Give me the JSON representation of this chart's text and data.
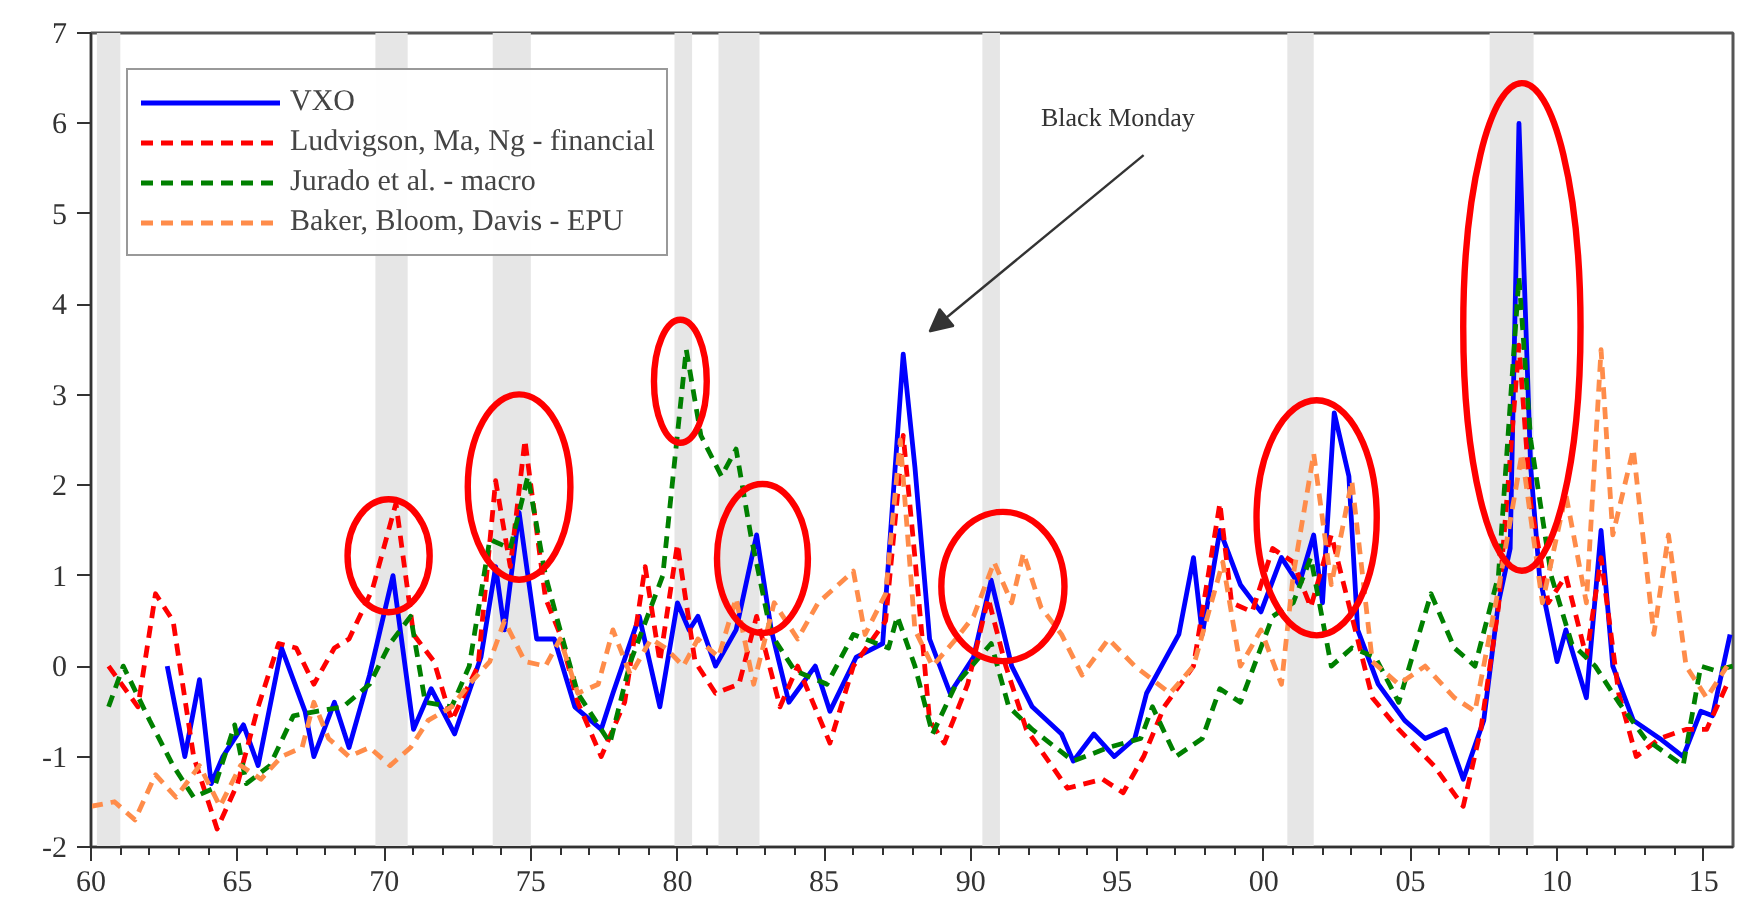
{
  "chart_data": {
    "type": "line",
    "xlim": [
      1960,
      2016
    ],
    "ylim": [
      -2,
      7
    ],
    "xticks": [
      {
        "value": 1960,
        "label": "60"
      },
      {
        "value": 1965,
        "label": "65"
      },
      {
        "value": 1970,
        "label": "70"
      },
      {
        "value": 1975,
        "label": "75"
      },
      {
        "value": 1980,
        "label": "80"
      },
      {
        "value": 1985,
        "label": "85"
      },
      {
        "value": 1990,
        "label": "90"
      },
      {
        "value": 1995,
        "label": "95"
      },
      {
        "value": 2000,
        "label": "00"
      },
      {
        "value": 2005,
        "label": "05"
      },
      {
        "value": 2010,
        "label": "10"
      },
      {
        "value": 2015,
        "label": "15"
      },
      {
        "value": 1961,
        "label": null
      },
      {
        "value": 1962,
        "label": null
      },
      {
        "value": 1963,
        "label": null
      },
      {
        "value": 1964,
        "label": null
      },
      {
        "value": 1966,
        "label": null
      },
      {
        "value": 1967,
        "label": null
      },
      {
        "value": 1968,
        "label": null
      },
      {
        "value": 1969,
        "label": null
      },
      {
        "value": 1971,
        "label": null
      },
      {
        "value": 1972,
        "label": null
      },
      {
        "value": 1973,
        "label": null
      },
      {
        "value": 1974,
        "label": null
      },
      {
        "value": 1976,
        "label": null
      },
      {
        "value": 1977,
        "label": null
      },
      {
        "value": 1978,
        "label": null
      },
      {
        "value": 1979,
        "label": null
      },
      {
        "value": 1981,
        "label": null
      },
      {
        "value": 1982,
        "label": null
      },
      {
        "value": 1983,
        "label": null
      },
      {
        "value": 1984,
        "label": null
      },
      {
        "value": 1986,
        "label": null
      },
      {
        "value": 1987,
        "label": null
      },
      {
        "value": 1988,
        "label": null
      },
      {
        "value": 1989,
        "label": null
      },
      {
        "value": 1991,
        "label": null
      },
      {
        "value": 1992,
        "label": null
      },
      {
        "value": 1993,
        "label": null
      },
      {
        "value": 1994,
        "label": null
      },
      {
        "value": 1996,
        "label": null
      },
      {
        "value": 1997,
        "label": null
      },
      {
        "value": 1998,
        "label": null
      },
      {
        "value": 1999,
        "label": null
      },
      {
        "value": 2001,
        "label": null
      },
      {
        "value": 2002,
        "label": null
      },
      {
        "value": 2003,
        "label": null
      },
      {
        "value": 2004,
        "label": null
      },
      {
        "value": 2006,
        "label": null
      },
      {
        "value": 2007,
        "label": null
      },
      {
        "value": 2008,
        "label": null
      },
      {
        "value": 2009,
        "label": null
      },
      {
        "value": 2011,
        "label": null
      },
      {
        "value": 2012,
        "label": null
      },
      {
        "value": 2013,
        "label": null
      },
      {
        "value": 2014,
        "label": null
      }
    ],
    "yticks": [
      -2,
      -1,
      0,
      1,
      2,
      3,
      4,
      5,
      6,
      7
    ],
    "grid": false,
    "legend": "top left",
    "annotations": [
      "Black Monday"
    ],
    "bands": [
      {
        "axis": "x",
        "from": 1960.2,
        "to": 1961.0,
        "color": "#e6e6e6"
      },
      {
        "axis": "x",
        "from": 1969.7,
        "to": 1970.8,
        "color": "#e6e6e6"
      },
      {
        "axis": "x",
        "from": 1973.7,
        "to": 1975.0,
        "color": "#e6e6e6"
      },
      {
        "axis": "x",
        "from": 1979.9,
        "to": 1980.5,
        "color": "#e6e6e6"
      },
      {
        "axis": "x",
        "from": 1981.4,
        "to": 1982.8,
        "color": "#e6e6e6"
      },
      {
        "axis": "x",
        "from": 1990.4,
        "to": 1991.0,
        "color": "#e6e6e6"
      },
      {
        "axis": "x",
        "from": 2000.8,
        "to": 2001.7,
        "color": "#e6e6e6"
      },
      {
        "axis": "x",
        "from": 2007.7,
        "to": 2009.2,
        "color": "#e6e6e6"
      }
    ],
    "series": [
      {
        "name": "VXO",
        "color": "#0000ff",
        "line_style": "solid",
        "x": [
          1962.6,
          1963.2,
          1963.7,
          1964.1,
          1964.5,
          1965.2,
          1965.7,
          1966.5,
          1967.3,
          1967.6,
          1968.3,
          1968.8,
          1969.5,
          1970.3,
          1971.0,
          1971.6,
          1972.4,
          1973.3,
          1973.8,
          1974.1,
          1974.6,
          1975.2,
          1975.8,
          1976.5,
          1977.4,
          1977.8,
          1978.7,
          1979.4,
          1980.0,
          1980.4,
          1980.7,
          1981.3,
          1982.0,
          1982.7,
          1983.2,
          1983.8,
          1984.7,
          1985.2,
          1986.1,
          1987.0,
          1987.7,
          1988.1,
          1988.6,
          1989.3,
          1990.1,
          1990.7,
          1991.4,
          1992.1,
          1993.1,
          1993.5,
          1994.2,
          1994.9,
          1995.6,
          1996.0,
          1997.1,
          1997.6,
          1997.9,
          1998.5,
          1999.2,
          1999.9,
          2000.6,
          2001.2,
          2001.7,
          2002.0,
          2002.4,
          2002.9,
          2003.2,
          2003.9,
          2004.8,
          2005.5,
          2006.2,
          2006.8,
          2007.5,
          2008.0,
          2008.4,
          2008.7,
          2009.1,
          2009.4,
          2010.0,
          2010.3,
          2011.0,
          2011.5,
          2011.9,
          2012.6,
          2013.5,
          2014.3,
          2014.9,
          2015.3,
          2015.9
        ],
        "values": [
          0.0,
          -1.0,
          -0.15,
          -1.3,
          -1.0,
          -0.65,
          -1.1,
          0.2,
          -0.5,
          -1.0,
          -0.4,
          -0.9,
          -0.1,
          1.0,
          -0.7,
          -0.25,
          -0.75,
          0.1,
          1.1,
          0.4,
          1.7,
          0.3,
          0.3,
          -0.45,
          -0.7,
          -0.3,
          0.55,
          -0.45,
          0.7,
          0.4,
          0.55,
          0.0,
          0.4,
          1.45,
          0.4,
          -0.4,
          0.0,
          -0.5,
          0.1,
          0.25,
          3.45,
          2.2,
          0.3,
          -0.3,
          0.1,
          0.95,
          0.0,
          -0.45,
          -0.75,
          -1.05,
          -0.75,
          -1.0,
          -0.8,
          -0.3,
          0.35,
          1.2,
          0.35,
          1.5,
          0.9,
          0.6,
          1.2,
          0.9,
          1.45,
          0.7,
          2.8,
          2.1,
          0.4,
          -0.2,
          -0.6,
          -0.8,
          -0.7,
          -1.25,
          -0.6,
          0.7,
          1.3,
          6.0,
          2.2,
          1.0,
          0.05,
          0.4,
          -0.35,
          1.5,
          0.0,
          -0.6,
          -0.8,
          -1.0,
          -0.5,
          -0.55,
          0.35
        ]
      },
      {
        "name": "Ludvigson, Ma, Ng - financial",
        "color": "#ff0000",
        "line_style": "dashed",
        "x": [
          1960.6,
          1961.6,
          1962.2,
          1962.8,
          1963.5,
          1964.3,
          1965.0,
          1965.7,
          1966.4,
          1967.0,
          1967.6,
          1968.3,
          1968.8,
          1969.6,
          1970.4,
          1971.0,
          1971.7,
          1972.3,
          1973.2,
          1973.8,
          1974.3,
          1974.8,
          1975.5,
          1976.0,
          1976.6,
          1977.4,
          1978.2,
          1978.9,
          1979.4,
          1980.0,
          1980.6,
          1981.3,
          1982.1,
          1982.7,
          1983.5,
          1984.1,
          1985.2,
          1986.0,
          1987.1,
          1987.7,
          1988.1,
          1988.6,
          1989.1,
          1989.9,
          1990.6,
          1991.2,
          1991.9,
          1993.3,
          1994.5,
          1995.2,
          1995.9,
          1996.6,
          1997.6,
          1998.5,
          1998.9,
          1999.6,
          2000.3,
          2001.0,
          2001.6,
          2002.3,
          2003.0,
          2003.7,
          2004.6,
          2005.8,
          2006.8,
          2007.4,
          2008.0,
          2008.7,
          2009.1,
          2009.7,
          2010.3,
          2011.0,
          2011.5,
          2012.1,
          2012.7,
          2013.5,
          2014.4,
          2015.1,
          2015.8
        ],
        "values": [
          0.0,
          -0.45,
          0.8,
          0.5,
          -1.0,
          -1.8,
          -1.3,
          -0.45,
          0.25,
          0.2,
          -0.2,
          0.2,
          0.3,
          0.85,
          1.8,
          0.35,
          0.05,
          -0.6,
          0.0,
          2.05,
          1.1,
          2.5,
          0.75,
          0.35,
          -0.4,
          -1.0,
          -0.4,
          1.1,
          0.05,
          1.35,
          0.05,
          -0.3,
          -0.2,
          0.55,
          -0.45,
          0.0,
          -0.85,
          0.0,
          0.5,
          2.55,
          1.2,
          -0.6,
          -0.85,
          -0.2,
          0.75,
          0.0,
          -0.7,
          -1.35,
          -1.25,
          -1.4,
          -1.0,
          -0.45,
          0.0,
          1.8,
          0.7,
          0.6,
          1.3,
          1.15,
          0.65,
          1.45,
          0.55,
          -0.35,
          -0.7,
          -1.1,
          -1.55,
          -0.7,
          0.65,
          3.55,
          1.8,
          0.7,
          1.0,
          0.1,
          1.2,
          -0.3,
          -1.0,
          -0.8,
          -0.7,
          -0.7,
          -0.2
        ]
      },
      {
        "name": "Jurado et al. - macro",
        "color": "#008000",
        "line_style": "dashed",
        "x": [
          1960.6,
          1961.1,
          1962.0,
          1962.8,
          1963.5,
          1964.2,
          1964.9,
          1965.3,
          1966.1,
          1966.9,
          1967.7,
          1968.6,
          1969.5,
          1970.2,
          1970.9,
          1971.4,
          1972.3,
          1972.9,
          1973.6,
          1974.3,
          1974.9,
          1975.5,
          1976.0,
          1976.6,
          1977.7,
          1978.4,
          1979.5,
          1980.3,
          1980.8,
          1981.5,
          1982.0,
          1982.5,
          1983.2,
          1984.0,
          1985.1,
          1986.0,
          1987.2,
          1987.5,
          1988.1,
          1988.7,
          1989.5,
          1990.7,
          1991.3,
          1992.1,
          1993.5,
          1994.7,
          1995.8,
          1996.2,
          1997.0,
          1997.9,
          1998.5,
          1999.2,
          2000.3,
          2001.0,
          2001.6,
          2002.3,
          2003.0,
          2003.8,
          2004.6,
          2005.7,
          2006.5,
          2007.2,
          2008.0,
          2008.7,
          2009.1,
          2009.8,
          2010.5,
          2011.3,
          2012.1,
          2013.0,
          2014.3,
          2014.9,
          2015.4,
          2016.0
        ],
        "values": [
          -0.45,
          0.0,
          -0.6,
          -1.1,
          -1.45,
          -1.35,
          -0.65,
          -1.3,
          -1.1,
          -0.55,
          -0.5,
          -0.45,
          -0.2,
          0.25,
          0.55,
          -0.4,
          -0.45,
          0.0,
          1.4,
          1.3,
          2.1,
          1.0,
          0.4,
          -0.3,
          -0.85,
          0.05,
          1.0,
          3.5,
          2.55,
          2.1,
          2.4,
          1.45,
          0.35,
          -0.05,
          -0.2,
          0.35,
          0.2,
          0.55,
          0.0,
          -0.75,
          -0.2,
          0.25,
          -0.45,
          -0.7,
          -1.05,
          -0.9,
          -0.8,
          -0.45,
          -1.0,
          -0.8,
          -0.25,
          -0.4,
          0.55,
          0.7,
          1.2,
          0.0,
          0.2,
          0.1,
          -0.4,
          0.8,
          0.2,
          0.0,
          1.0,
          4.3,
          2.5,
          1.0,
          0.25,
          0.0,
          -0.4,
          -0.8,
          -1.1,
          0.0,
          -0.05,
          0.0
        ]
      },
      {
        "name": "Baker, Bloom, Davis - EPU",
        "color": "#ff8c4a",
        "line_style": "dashed",
        "x": [
          1960.0,
          1960.8,
          1961.5,
          1962.2,
          1962.9,
          1963.7,
          1964.4,
          1965.1,
          1965.8,
          1966.5,
          1967.2,
          1967.6,
          1968.1,
          1968.8,
          1969.5,
          1970.2,
          1970.9,
          1971.5,
          1972.3,
          1972.9,
          1973.6,
          1974.1,
          1974.8,
          1975.5,
          1976.0,
          1976.6,
          1977.3,
          1977.8,
          1978.4,
          1979.1,
          1979.6,
          1980.2,
          1980.7,
          1981.4,
          1982.0,
          1982.6,
          1983.3,
          1984.1,
          1984.8,
          1986.0,
          1986.4,
          1987.1,
          1987.6,
          1988.1,
          1988.7,
          1989.5,
          1990.1,
          1990.8,
          1991.4,
          1991.8,
          1992.4,
          1993.1,
          1993.8,
          1994.7,
          1995.6,
          1996.8,
          1997.6,
          1998.6,
          1999.2,
          1999.9,
          2000.6,
          2001.0,
          2001.7,
          2002.3,
          2003.0,
          2003.7,
          2004.6,
          2005.5,
          2006.5,
          2007.2,
          2008.0,
          2008.8,
          2009.5,
          2010.3,
          2011.0,
          2011.5,
          2011.9,
          2012.6,
          2013.3,
          2013.8,
          2014.4,
          2015.1,
          2015.8
        ],
        "values": [
          -1.55,
          -1.5,
          -1.7,
          -1.2,
          -1.45,
          -1.1,
          -1.55,
          -1.1,
          -1.25,
          -1.0,
          -0.9,
          -0.4,
          -0.8,
          -1.0,
          -0.9,
          -1.1,
          -0.9,
          -0.6,
          -0.45,
          -0.2,
          0.05,
          0.5,
          0.05,
          0.0,
          0.3,
          -0.3,
          -0.2,
          0.4,
          -0.1,
          0.3,
          0.2,
          0.0,
          0.3,
          0.1,
          0.75,
          -0.2,
          0.7,
          0.3,
          0.7,
          1.05,
          0.35,
          0.8,
          2.5,
          0.4,
          0.0,
          0.3,
          0.55,
          1.15,
          0.7,
          1.25,
          0.65,
          0.35,
          -0.1,
          0.3,
          0.0,
          -0.3,
          0.0,
          1.15,
          0.0,
          0.4,
          -0.2,
          1.0,
          2.35,
          0.9,
          2.05,
          0.05,
          -0.2,
          0.0,
          -0.35,
          -0.5,
          0.85,
          2.35,
          0.7,
          1.9,
          0.7,
          3.5,
          1.45,
          2.4,
          0.35,
          1.45,
          0.0,
          -0.35,
          0.0
        ]
      }
    ]
  }
}
